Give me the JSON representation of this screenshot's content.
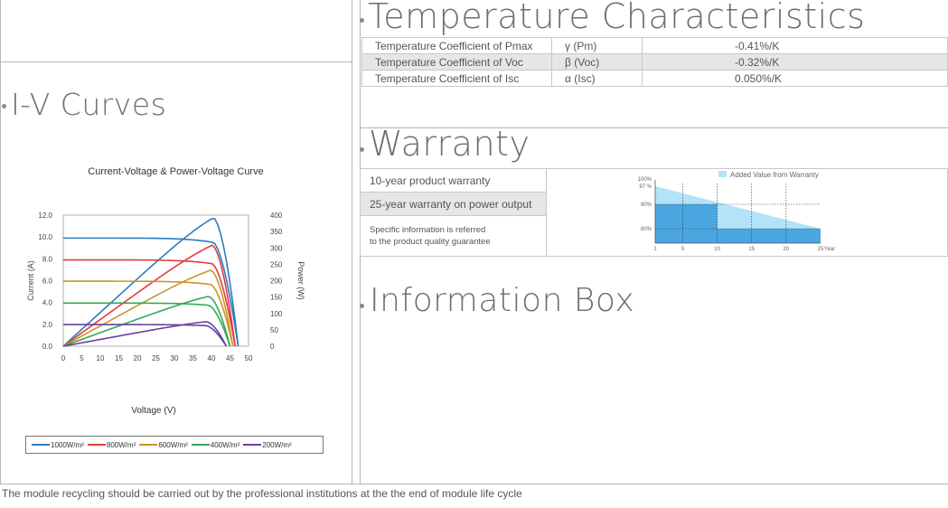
{
  "iv": {
    "title": "I-V Curves",
    "chart_data": {
      "type": "line",
      "title": "Current-Voltage & Power-Voltage Curve",
      "xlabel": "Voltage (V)",
      "ylabel": "Current (A)",
      "y2label": "Power (W)",
      "xlim": [
        0,
        50
      ],
      "ylim": [
        0,
        12
      ],
      "y2lim": [
        0,
        400
      ],
      "xticks": [
        "0",
        "5",
        "10",
        "15",
        "20",
        "25",
        "30",
        "35",
        "40",
        "45",
        "50"
      ],
      "yticks": [
        "0.0",
        "2.0",
        "4.0",
        "6.0",
        "8.0",
        "10.0",
        "12.0"
      ],
      "y2ticks": [
        "0",
        "50",
        "100",
        "150",
        "200",
        "250",
        "300",
        "350",
        "400"
      ],
      "legend_placement": "bottom",
      "series": [
        {
          "name": "1000W/m²",
          "color": "#2e7bbd",
          "isc": 9.9,
          "imp": 9.5,
          "vmp": 40.5,
          "voc": 47.2,
          "pmax": 392
        },
        {
          "name": "800W/m²",
          "color": "#e53c3c",
          "isc": 7.9,
          "imp": 7.55,
          "vmp": 40.2,
          "voc": 46.4,
          "pmax": 308
        },
        {
          "name": "600W/m²",
          "color": "#c9962c",
          "isc": 5.95,
          "imp": 5.65,
          "vmp": 39.8,
          "voc": 45.8,
          "pmax": 232
        },
        {
          "name": "400W/m²",
          "color": "#35a853",
          "isc": 3.95,
          "imp": 3.75,
          "vmp": 39.2,
          "voc": 45.0,
          "pmax": 152
        },
        {
          "name": "200W/m²",
          "color": "#6a3fa0",
          "isc": 1.98,
          "imp": 1.88,
          "vmp": 38.5,
          "voc": 44.0,
          "pmax": 75
        }
      ]
    }
  },
  "temperature": {
    "title": "Temperature Characteristics",
    "rows": [
      {
        "name": "Temperature Coefficient of Pmax",
        "symbol": "γ (Pm)",
        "value": "-0.41%/K"
      },
      {
        "name": "Temperature Coefficient of Voc",
        "symbol": "β (Voc)",
        "value": "-0.32%/K"
      },
      {
        "name": "Temperature Coefficient of Isc",
        "symbol": "α (Isc)",
        "value": "0.050%/K"
      }
    ]
  },
  "warranty": {
    "title": "Warranty",
    "product": "10-year product warranty",
    "power": "25-year warranty on power output",
    "info_line1": "Specific information is referred",
    "info_line2": "to the product quality guarantee",
    "chart_data": {
      "type": "area",
      "legend": "Added Value from Warranty",
      "legend_placement": "top-right",
      "xlim": [
        1,
        25
      ],
      "xticks": [
        "1",
        "5",
        "10",
        "15",
        "20",
        "25"
      ],
      "x_unit": "Year",
      "yticks": [
        "100%",
        "97 %",
        "90%",
        "80%"
      ],
      "linear_warranty": [
        [
          1,
          97
        ],
        [
          25,
          80
        ]
      ],
      "step_warranty": [
        [
          1,
          90
        ],
        [
          10,
          90
        ],
        [
          10,
          80
        ],
        [
          25,
          80
        ]
      ],
      "colors": {
        "added": "#b3e3f7",
        "base": "#4aa6de"
      }
    }
  },
  "info": {
    "title": "Information Box"
  },
  "footer": {
    "text": "The module recycling should be carried out by the professional institutions at the the end of module life cycle"
  }
}
